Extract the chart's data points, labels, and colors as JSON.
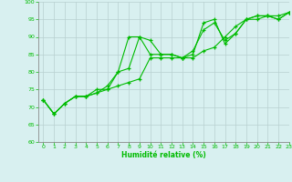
{
  "bg_color": "#d8f0f0",
  "grid_color": "#b8d0d0",
  "line_color": "#00bb00",
  "xlabel": "Humidité relative (%)",
  "xlim": [
    -0.5,
    23
  ],
  "ylim": [
    60,
    100
  ],
  "yticks": [
    60,
    65,
    70,
    75,
    80,
    85,
    90,
    95,
    100
  ],
  "xticks": [
    0,
    1,
    2,
    3,
    4,
    5,
    6,
    7,
    8,
    9,
    10,
    11,
    12,
    13,
    14,
    15,
    16,
    17,
    18,
    19,
    20,
    21,
    22,
    23
  ],
  "lines": [
    [
      72,
      68,
      71,
      73,
      73,
      74,
      76,
      80,
      90,
      90,
      89,
      85,
      85,
      84,
      86,
      92,
      94,
      89,
      91,
      95,
      96,
      96,
      95,
      97
    ],
    [
      72,
      68,
      71,
      73,
      73,
      75,
      75,
      80,
      81,
      90,
      85,
      85,
      85,
      84,
      85,
      94,
      95,
      88,
      91,
      95,
      96,
      96,
      95,
      97
    ],
    [
      72,
      68,
      71,
      73,
      73,
      74,
      75,
      76,
      77,
      78,
      84,
      84,
      84,
      84,
      84,
      86,
      87,
      90,
      93,
      95,
      95,
      96,
      96,
      97
    ]
  ]
}
